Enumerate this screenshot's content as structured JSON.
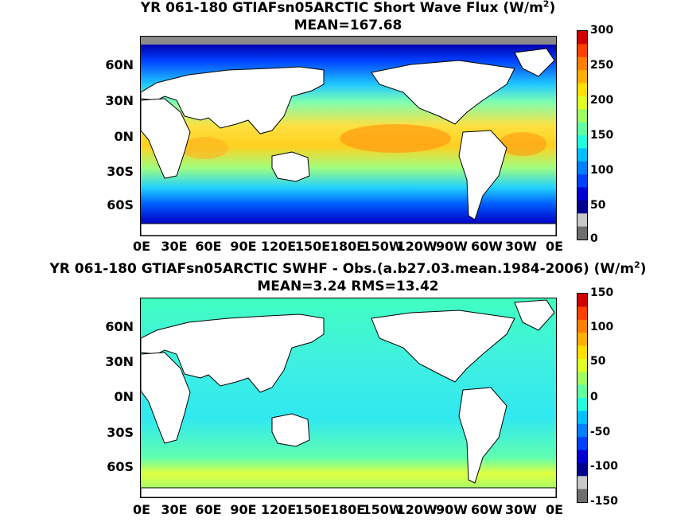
{
  "panels": [
    {
      "title_line1": "YR 061-180 GTIAFsn05ARCTIC  Short Wave Flux (W/m",
      "title_sup": "2",
      "title_end": ")",
      "title_line2": "MEAN=167.68",
      "lat_labels": [
        "60N",
        "30N",
        "0N",
        "30S",
        "60S"
      ],
      "lon_labels": [
        "0E",
        "30E",
        "60E",
        "90E",
        "120E",
        "150E",
        "180E",
        "150W",
        "120W",
        "90W",
        "60W",
        "30W",
        "0E"
      ],
      "colorbar_labels": [
        "300",
        "250",
        "200",
        "150",
        "100",
        "50",
        "0"
      ],
      "colorbar_colors": [
        "#d00000",
        "#ff4000",
        "#ff8000",
        "#ffb000",
        "#ffe000",
        "#e0ff20",
        "#a0ff60",
        "#60ffa0",
        "#20ffe0",
        "#00c0ff",
        "#0080ff",
        "#0040ff",
        "#0000d0",
        "#00008f",
        "#c8c8c8",
        "#6e6e6e"
      ]
    },
    {
      "title_line1": "YR 061-180 GTIAFsn05ARCTIC SWHF - Obs.(a.b27.03.mean.1984-2006) (W/m",
      "title_sup": "2",
      "title_end": ")",
      "title_line2": "MEAN=3.24 RMS=13.42",
      "lat_labels": [
        "60N",
        "30N",
        "0N",
        "30S",
        "60S"
      ],
      "lon_labels": [
        "0E",
        "30E",
        "60E",
        "90E",
        "120E",
        "150E",
        "180E",
        "150W",
        "120W",
        "90W",
        "60W",
        "30W",
        "0E"
      ],
      "colorbar_labels": [
        "150",
        "100",
        "50",
        "0",
        "-50",
        "-100",
        "-150"
      ],
      "colorbar_colors": [
        "#d00000",
        "#ff4000",
        "#ff8000",
        "#ffb000",
        "#ffe000",
        "#e0ff20",
        "#a0ff60",
        "#60ffa0",
        "#20ffe0",
        "#00c0ff",
        "#0080ff",
        "#0040ff",
        "#0000d0",
        "#00008f",
        "#c8c8c8",
        "#6e6e6e"
      ]
    }
  ]
}
